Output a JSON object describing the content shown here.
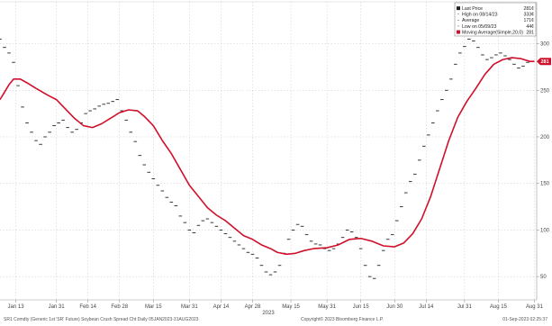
{
  "chart_data": {
    "type": "line",
    "title": "",
    "xlabel": "",
    "ylabel": "",
    "x_range": [
      "2023-01-06",
      "2023-09-01"
    ],
    "ylim": [
      25,
      345
    ],
    "y_ticks": [
      50,
      100,
      150,
      200,
      250,
      300
    ],
    "y_tick_labels": [
      "50",
      "100",
      "150",
      "200",
      "250",
      "300"
    ],
    "x_ticks": [
      {
        "date": "2023-01-13",
        "label": "Jan 13"
      },
      {
        "date": "2023-01-31",
        "label": "Jan 31"
      },
      {
        "date": "2023-02-14",
        "label": "Feb 14"
      },
      {
        "date": "2023-02-28",
        "label": "Feb 28"
      },
      {
        "date": "2023-03-15",
        "label": "Mar 15"
      },
      {
        "date": "2023-03-31",
        "label": "Mar 31"
      },
      {
        "date": "2023-04-14",
        "label": "Apr 14"
      },
      {
        "date": "2023-04-28",
        "label": "Apr 28"
      },
      {
        "date": "2023-05-15",
        "label": "May 15"
      },
      {
        "date": "2023-05-31",
        "label": "May 31"
      },
      {
        "date": "2023-06-15",
        "label": "Jun 15"
      },
      {
        "date": "2023-06-30",
        "label": "Jun 30"
      },
      {
        "date": "2023-07-14",
        "label": "Jul 14"
      },
      {
        "date": "2023-07-31",
        "label": "Jul 31"
      },
      {
        "date": "2023-08-15",
        "label": "Aug 15"
      },
      {
        "date": "2023-08-31",
        "label": "Aug 31"
      }
    ],
    "year_label": "2023",
    "grid": true,
    "legend_position": "top-right",
    "series": [
      {
        "name": "Last Price",
        "style": "price-ticks",
        "color": "#222222",
        "points": [
          [
            "2023-01-06",
            305
          ],
          [
            "2023-01-08",
            296
          ],
          [
            "2023-01-10",
            290
          ],
          [
            "2023-01-12",
            280
          ],
          [
            "2023-01-14",
            255
          ],
          [
            "2023-01-16",
            232
          ],
          [
            "2023-01-18",
            215
          ],
          [
            "2023-01-20",
            205
          ],
          [
            "2023-01-22",
            196
          ],
          [
            "2023-01-24",
            192
          ],
          [
            "2023-01-26",
            200
          ],
          [
            "2023-01-28",
            205
          ],
          [
            "2023-01-30",
            212
          ],
          [
            "2023-02-01",
            215
          ],
          [
            "2023-02-03",
            218
          ],
          [
            "2023-02-05",
            210
          ],
          [
            "2023-02-07",
            205
          ],
          [
            "2023-02-09",
            208
          ],
          [
            "2023-02-11",
            215
          ],
          [
            "2023-02-13",
            225
          ],
          [
            "2023-02-15",
            228
          ],
          [
            "2023-02-17",
            230
          ],
          [
            "2023-02-19",
            233
          ],
          [
            "2023-02-21",
            235
          ],
          [
            "2023-02-23",
            236
          ],
          [
            "2023-02-25",
            238
          ],
          [
            "2023-02-27",
            240
          ],
          [
            "2023-03-01",
            228
          ],
          [
            "2023-03-03",
            218
          ],
          [
            "2023-03-05",
            205
          ],
          [
            "2023-03-07",
            195
          ],
          [
            "2023-03-09",
            180
          ],
          [
            "2023-03-11",
            170
          ],
          [
            "2023-03-13",
            162
          ],
          [
            "2023-03-15",
            155
          ],
          [
            "2023-03-17",
            148
          ],
          [
            "2023-03-19",
            142
          ],
          [
            "2023-03-21",
            135
          ],
          [
            "2023-03-23",
            130
          ],
          [
            "2023-03-25",
            126
          ],
          [
            "2023-03-27",
            115
          ],
          [
            "2023-03-29",
            108
          ],
          [
            "2023-03-31",
            100
          ],
          [
            "2023-04-02",
            97
          ],
          [
            "2023-04-04",
            105
          ],
          [
            "2023-04-06",
            110
          ],
          [
            "2023-04-08",
            112
          ],
          [
            "2023-04-10",
            108
          ],
          [
            "2023-04-12",
            104
          ],
          [
            "2023-04-14",
            100
          ],
          [
            "2023-04-16",
            96
          ],
          [
            "2023-04-18",
            92
          ],
          [
            "2023-04-20",
            88
          ],
          [
            "2023-04-22",
            84
          ],
          [
            "2023-04-24",
            80
          ],
          [
            "2023-04-26",
            76
          ],
          [
            "2023-04-28",
            74
          ],
          [
            "2023-04-30",
            70
          ],
          [
            "2023-05-02",
            62
          ],
          [
            "2023-05-04",
            55
          ],
          [
            "2023-05-06",
            52
          ],
          [
            "2023-05-08",
            55
          ],
          [
            "2023-05-10",
            62
          ],
          [
            "2023-05-12",
            75
          ],
          [
            "2023-05-14",
            90
          ],
          [
            "2023-05-16",
            100
          ],
          [
            "2023-05-18",
            106
          ],
          [
            "2023-05-20",
            104
          ],
          [
            "2023-05-22",
            95
          ],
          [
            "2023-05-24",
            88
          ],
          [
            "2023-05-26",
            85
          ],
          [
            "2023-05-28",
            84
          ],
          [
            "2023-05-30",
            80
          ],
          [
            "2023-06-01",
            78
          ],
          [
            "2023-06-03",
            80
          ],
          [
            "2023-06-05",
            85
          ],
          [
            "2023-06-07",
            92
          ],
          [
            "2023-06-09",
            100
          ],
          [
            "2023-06-11",
            98
          ],
          [
            "2023-06-13",
            92
          ],
          [
            "2023-06-15",
            80
          ],
          [
            "2023-06-17",
            62
          ],
          [
            "2023-06-19",
            50
          ],
          [
            "2023-06-21",
            48
          ],
          [
            "2023-06-23",
            62
          ],
          [
            "2023-06-25",
            78
          ],
          [
            "2023-06-27",
            90
          ],
          [
            "2023-06-29",
            95
          ],
          [
            "2023-07-01",
            110
          ],
          [
            "2023-07-03",
            125
          ],
          [
            "2023-07-05",
            140
          ],
          [
            "2023-07-07",
            152
          ],
          [
            "2023-07-09",
            160
          ],
          [
            "2023-07-11",
            175
          ],
          [
            "2023-07-13",
            190
          ],
          [
            "2023-07-15",
            202
          ],
          [
            "2023-07-17",
            215
          ],
          [
            "2023-07-19",
            228
          ],
          [
            "2023-07-21",
            240
          ],
          [
            "2023-07-23",
            250
          ],
          [
            "2023-07-25",
            262
          ],
          [
            "2023-07-27",
            278
          ],
          [
            "2023-07-29",
            290
          ],
          [
            "2023-07-31",
            297
          ],
          [
            "2023-08-02",
            305
          ],
          [
            "2023-08-04",
            303
          ],
          [
            "2023-08-06",
            296
          ],
          [
            "2023-08-08",
            288
          ],
          [
            "2023-08-10",
            283
          ],
          [
            "2023-08-12",
            285
          ],
          [
            "2023-08-14",
            288
          ],
          [
            "2023-08-16",
            290
          ],
          [
            "2023-08-18",
            287
          ],
          [
            "2023-08-20",
            283
          ],
          [
            "2023-08-22",
            278
          ],
          [
            "2023-08-24",
            274
          ],
          [
            "2023-08-26",
            276
          ],
          [
            "2023-08-28",
            280
          ],
          [
            "2023-08-30",
            281
          ]
        ]
      },
      {
        "name": "Moving Average(Simple,20,0)",
        "style": "line",
        "color": "#d0102a",
        "points": [
          [
            "2023-01-06",
            240
          ],
          [
            "2023-01-08",
            248
          ],
          [
            "2023-01-10",
            256
          ],
          [
            "2023-01-12",
            262
          ],
          [
            "2023-01-15",
            262
          ],
          [
            "2023-01-18",
            258
          ],
          [
            "2023-01-22",
            252
          ],
          [
            "2023-01-27",
            245
          ],
          [
            "2023-01-31",
            240
          ],
          [
            "2023-02-04",
            230
          ],
          [
            "2023-02-08",
            220
          ],
          [
            "2023-02-12",
            212
          ],
          [
            "2023-02-16",
            210
          ],
          [
            "2023-02-20",
            214
          ],
          [
            "2023-02-24",
            220
          ],
          [
            "2023-02-28",
            226
          ],
          [
            "2023-03-04",
            229
          ],
          [
            "2023-03-08",
            228
          ],
          [
            "2023-03-11",
            222
          ],
          [
            "2023-03-15",
            212
          ],
          [
            "2023-03-19",
            196
          ],
          [
            "2023-03-23",
            182
          ],
          [
            "2023-03-27",
            165
          ],
          [
            "2023-03-31",
            148
          ],
          [
            "2023-04-04",
            136
          ],
          [
            "2023-04-08",
            124
          ],
          [
            "2023-04-12",
            116
          ],
          [
            "2023-04-16",
            110
          ],
          [
            "2023-04-20",
            102
          ],
          [
            "2023-04-24",
            94
          ],
          [
            "2023-04-28",
            90
          ],
          [
            "2023-05-02",
            84
          ],
          [
            "2023-05-06",
            80
          ],
          [
            "2023-05-09",
            76
          ],
          [
            "2023-05-13",
            74
          ],
          [
            "2023-05-17",
            75
          ],
          [
            "2023-05-21",
            78
          ],
          [
            "2023-05-25",
            80
          ],
          [
            "2023-05-31",
            81
          ],
          [
            "2023-06-05",
            84
          ],
          [
            "2023-06-10",
            90
          ],
          [
            "2023-06-15",
            91
          ],
          [
            "2023-06-20",
            88
          ],
          [
            "2023-06-25",
            83
          ],
          [
            "2023-06-30",
            82
          ],
          [
            "2023-07-04",
            86
          ],
          [
            "2023-07-08",
            96
          ],
          [
            "2023-07-12",
            112
          ],
          [
            "2023-07-16",
            136
          ],
          [
            "2023-07-20",
            166
          ],
          [
            "2023-07-24",
            196
          ],
          [
            "2023-07-28",
            221
          ],
          [
            "2023-08-01",
            238
          ],
          [
            "2023-08-05",
            252
          ],
          [
            "2023-08-09",
            267
          ],
          [
            "2023-08-13",
            278
          ],
          [
            "2023-08-17",
            283
          ],
          [
            "2023-08-21",
            285
          ],
          [
            "2023-08-25",
            284
          ],
          [
            "2023-08-29",
            281
          ],
          [
            "2023-08-31",
            281
          ]
        ]
      }
    ],
    "last_value_tag": {
      "label": "281",
      "value": 281,
      "color": "#d0102a"
    }
  },
  "legend": {
    "rows": [
      {
        "label": "Last Price",
        "value": "281",
        "unit": "¢",
        "marker": "price",
        "color": "#222222"
      },
      {
        "label": "High on 08/14/23",
        "value": "333",
        "unit": "¢",
        "marker": "none",
        "color": "#222222"
      },
      {
        "label": "Average",
        "value": "171",
        "unit": "¢",
        "marker": "none",
        "color": "#222222"
      },
      {
        "label": "Low on 05/09/23",
        "value": "44",
        "unit": "¢",
        "marker": "none",
        "color": "#222222"
      },
      {
        "label": "Moving Average(Simple,20,0)",
        "value": "281",
        "unit": "",
        "marker": "line",
        "color": "#d0102a"
      }
    ]
  },
  "footer": {
    "left": "SR1 Comdty (Generic 1st 'SR' Future) Soybean Crush Spread Cht  Daily 05JAN2023-31AUG2023",
    "center": "Copyright© 2023 Bloomberg Finance L.P.",
    "right": "01-Sep-2023 02:25:37"
  }
}
